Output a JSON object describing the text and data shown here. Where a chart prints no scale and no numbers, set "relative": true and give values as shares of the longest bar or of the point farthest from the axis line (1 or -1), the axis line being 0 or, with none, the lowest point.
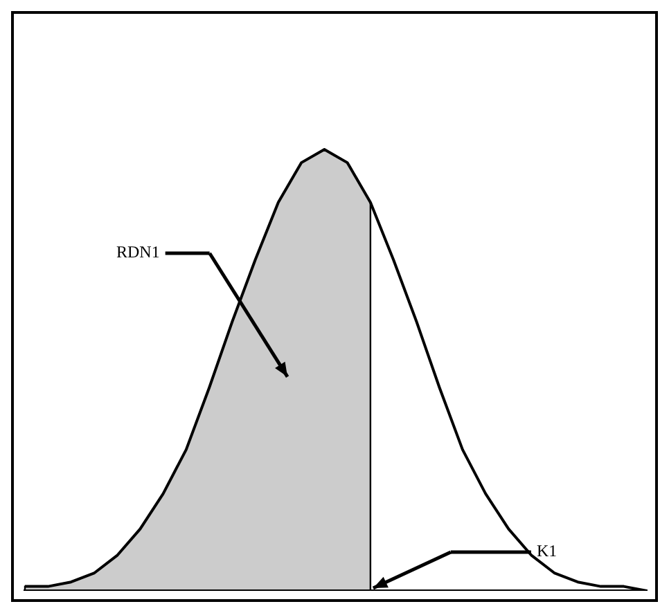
{
  "chart_data": {
    "type": "line",
    "relative": true,
    "grid": false,
    "legend": false,
    "marker": "none",
    "line_style": "solid",
    "categories": [
      null,
      null,
      null,
      null,
      null,
      null,
      null,
      null,
      null,
      null,
      null,
      null,
      null,
      null,
      null,
      null,
      null,
      null,
      null,
      null,
      null,
      null,
      null,
      null,
      null,
      null,
      null,
      null
    ],
    "series": [
      {
        "type": "area",
        "color": "#000000",
        "values": [
          0.01,
          0.01,
          0.02,
          0.04,
          0.08,
          0.14,
          0.22,
          0.32,
          0.46,
          0.61,
          0.75,
          0.88,
          0.97,
          1,
          0.97,
          0.88,
          null,
          null,
          null,
          null,
          null,
          null,
          null,
          null,
          null,
          null,
          null,
          null
        ]
      },
      {
        "type": "line",
        "color": "#000000",
        "values": [
          0.01,
          0.01,
          0.02,
          0.04,
          0.08,
          0.14,
          0.22,
          0.32,
          0.46,
          0.61,
          0.75,
          0.88,
          0.97,
          1,
          0.97,
          0.88,
          0.75,
          0.61,
          0.46,
          0.32,
          0.22,
          0.14,
          0.08,
          0.04,
          0.02,
          0.01,
          0.01,
          0
        ]
      }
    ],
    "annotations": [
      "RDN1",
      "K1"
    ]
  }
}
